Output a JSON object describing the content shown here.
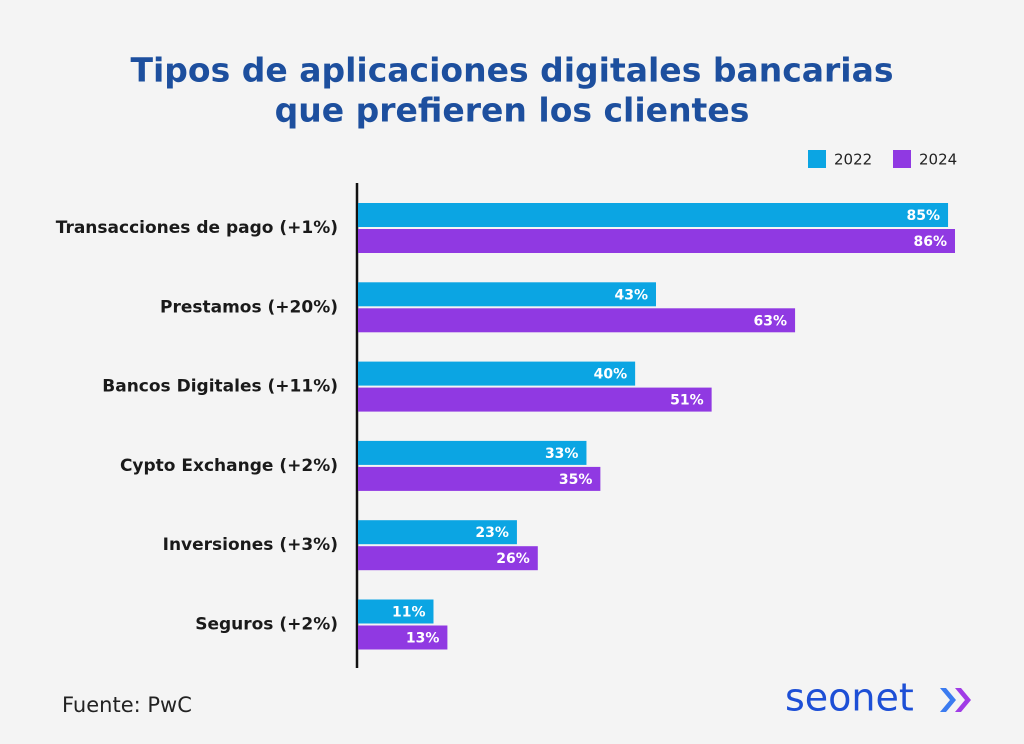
{
  "chart_data": {
    "type": "bar",
    "orientation": "horizontal",
    "title": [
      "Tipos de aplicaciones digitales bancarias",
      "que prefieren los clientes"
    ],
    "categories": [
      "Transacciones de pago (+1%)",
      "Prestamos (+20%)",
      "Bancos Digitales (+11%)",
      "Cypto Exchange (+2%)",
      "Inversiones (+3%)",
      "Seguros (+2%)"
    ],
    "series": [
      {
        "name": "2022",
        "color": "#0ba5e3",
        "values": [
          85,
          43,
          40,
          33,
          23,
          11
        ],
        "value_labels": [
          "85%",
          "43%",
          "40%",
          "33%",
          "23%",
          "11%"
        ]
      },
      {
        "name": "2024",
        "color": "#9039e2",
        "values": [
          86,
          63,
          51,
          35,
          26,
          13
        ],
        "value_labels": [
          "86%",
          "63%",
          "51%",
          "35%",
          "26%",
          "13%"
        ]
      }
    ],
    "legend": "top-right"
  },
  "footer": {
    "source": "Fuente: PwC",
    "logo": "seonet"
  }
}
